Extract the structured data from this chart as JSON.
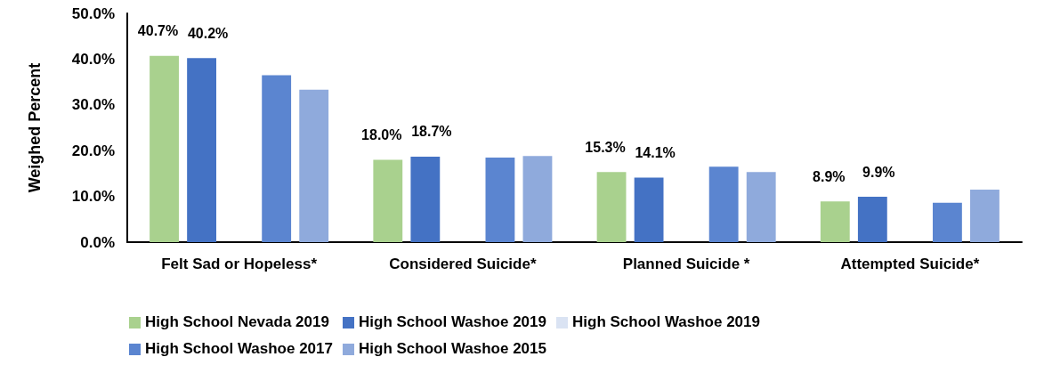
{
  "chart_data": {
    "type": "bar",
    "ylabel": "Weighed Percent",
    "categories": [
      "Felt Sad or Hopeless*",
      "Considered Suicide*",
      "Planned Suicide *",
      "Attempted Suicide*"
    ],
    "series": [
      {
        "name": "High School Nevada 2019",
        "color": "#a9d18e",
        "values": [
          40.7,
          18.0,
          15.3,
          8.9
        ],
        "value_labels": [
          "40.7%",
          "18.0%",
          "15.3%",
          "8.9%"
        ]
      },
      {
        "name": "High School Washoe 2019",
        "color": "#4472c4",
        "values": [
          40.2,
          18.7,
          14.1,
          9.9
        ],
        "value_labels": [
          "40.2%",
          "18.7%",
          "14.1%",
          "9.9%"
        ]
      },
      {
        "name": "High School Washoe 2019",
        "color": "#dae3f3",
        "values": [
          null,
          null,
          null,
          null
        ]
      },
      {
        "name": "High School Washoe 2017",
        "color": "#5b85d0",
        "values": [
          36.5,
          18.5,
          16.5,
          8.6
        ]
      },
      {
        "name": "High School Washoe 2015",
        "color": "#8faadc",
        "values": [
          33.3,
          18.8,
          15.3,
          11.5
        ]
      }
    ],
    "ylim": [
      0,
      50
    ],
    "yticks": [
      {
        "value": 0,
        "label": "0.0%"
      },
      {
        "value": 10,
        "label": "10.0%"
      },
      {
        "value": 20,
        "label": "20.0%"
      },
      {
        "value": 30,
        "label": "30.0%"
      },
      {
        "value": 40,
        "label": "40.0%"
      },
      {
        "value": 50,
        "label": "50.0%"
      }
    ],
    "grid": false,
    "legend": "bottom"
  }
}
